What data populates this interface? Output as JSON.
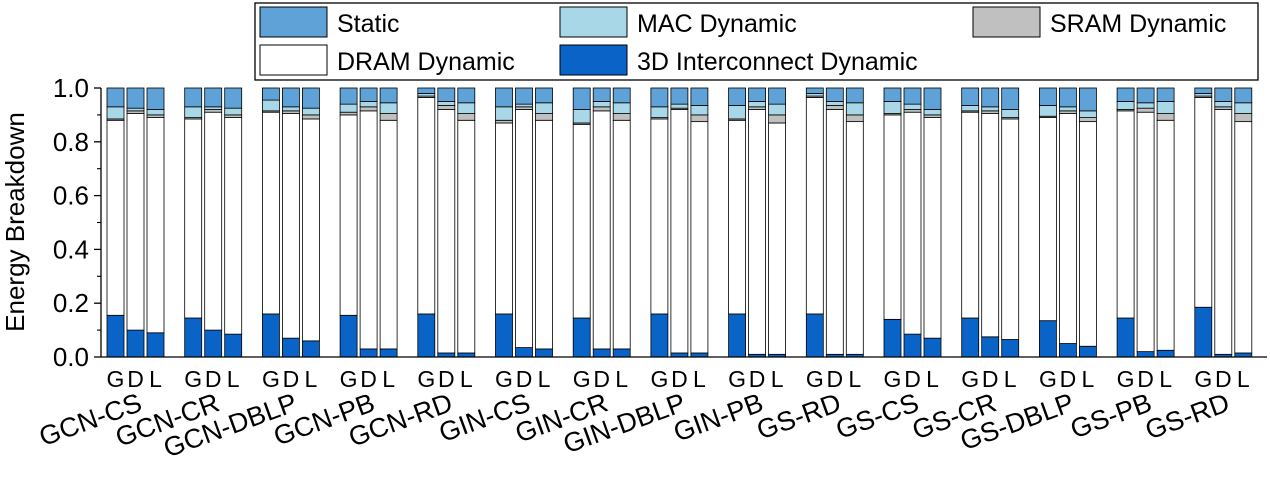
{
  "chart_data": {
    "type": "bar",
    "stacked": true,
    "ylabel": "Energy Breakdown",
    "ylim": [
      0,
      1.0
    ],
    "yticks": [
      "0.0",
      "0.2",
      "0.4",
      "0.6",
      "0.8",
      "1.0"
    ],
    "sub_labels": [
      "G",
      "D",
      "L"
    ],
    "groups": [
      "GCN-CS",
      "GCN-CR",
      "GCN-DBLP",
      "GCN-PB",
      "GCN-RD",
      "GIN-CS",
      "GIN-CR",
      "GIN-DBLP",
      "GIN-PB",
      "GS-RD",
      "GS-CS",
      "GS-CR",
      "GS-DBLP",
      "GS-PB",
      "GS-RD"
    ],
    "legend": {
      "position": "top",
      "entries": [
        {
          "key": "static",
          "label": "Static",
          "color": "#5fa2d8"
        },
        {
          "key": "mac",
          "label": "MAC Dynamic",
          "color": "#a8d8e8"
        },
        {
          "key": "sram",
          "label": "SRAM Dynamic",
          "color": "#c0c0c0"
        },
        {
          "key": "dram",
          "label": "DRAM Dynamic",
          "color": "#ffffff"
        },
        {
          "key": "interconnect",
          "label": "3D Interconnect Dynamic",
          "color": "#0a64c8"
        }
      ]
    },
    "stack_order": [
      "interconnect",
      "dram",
      "sram",
      "mac",
      "static"
    ],
    "bars": [
      [
        [
          0.155,
          0.725,
          0.005,
          0.045,
          0.07
        ],
        [
          0.1,
          0.805,
          0.01,
          0.01,
          0.075
        ],
        [
          0.09,
          0.8,
          0.01,
          0.02,
          0.08
        ]
      ],
      [
        [
          0.145,
          0.74,
          0.005,
          0.04,
          0.07
        ],
        [
          0.1,
          0.81,
          0.01,
          0.01,
          0.07
        ],
        [
          0.085,
          0.805,
          0.01,
          0.025,
          0.075
        ]
      ],
      [
        [
          0.16,
          0.75,
          0.005,
          0.04,
          0.045
        ],
        [
          0.07,
          0.835,
          0.01,
          0.015,
          0.07
        ],
        [
          0.06,
          0.825,
          0.015,
          0.025,
          0.075
        ]
      ],
      [
        [
          0.155,
          0.745,
          0.01,
          0.03,
          0.06
        ],
        [
          0.03,
          0.885,
          0.015,
          0.02,
          0.05
        ],
        [
          0.03,
          0.85,
          0.025,
          0.04,
          0.055
        ]
      ],
      [
        [
          0.16,
          0.805,
          0.005,
          0.01,
          0.02
        ],
        [
          0.015,
          0.905,
          0.015,
          0.015,
          0.05
        ],
        [
          0.015,
          0.865,
          0.025,
          0.04,
          0.055
        ]
      ],
      [
        [
          0.16,
          0.71,
          0.01,
          0.05,
          0.07
        ],
        [
          0.035,
          0.885,
          0.01,
          0.01,
          0.06
        ],
        [
          0.03,
          0.85,
          0.025,
          0.04,
          0.055
        ]
      ],
      [
        [
          0.145,
          0.72,
          0.005,
          0.05,
          0.08
        ],
        [
          0.03,
          0.885,
          0.015,
          0.02,
          0.05
        ],
        [
          0.03,
          0.85,
          0.025,
          0.04,
          0.055
        ]
      ],
      [
        [
          0.16,
          0.725,
          0.005,
          0.04,
          0.07
        ],
        [
          0.015,
          0.905,
          0.005,
          0.015,
          0.06
        ],
        [
          0.015,
          0.86,
          0.025,
          0.035,
          0.065
        ]
      ],
      [
        [
          0.16,
          0.72,
          0.005,
          0.05,
          0.065
        ],
        [
          0.01,
          0.91,
          0.01,
          0.02,
          0.05
        ],
        [
          0.01,
          0.86,
          0.03,
          0.04,
          0.06
        ]
      ],
      [
        [
          0.16,
          0.805,
          0.005,
          0.01,
          0.02
        ],
        [
          0.01,
          0.91,
          0.015,
          0.015,
          0.05
        ],
        [
          0.01,
          0.865,
          0.025,
          0.045,
          0.055
        ]
      ],
      [
        [
          0.14,
          0.76,
          0.005,
          0.045,
          0.05
        ],
        [
          0.085,
          0.825,
          0.01,
          0.02,
          0.06
        ],
        [
          0.07,
          0.82,
          0.01,
          0.02,
          0.08
        ]
      ],
      [
        [
          0.145,
          0.765,
          0.005,
          0.02,
          0.065
        ],
        [
          0.075,
          0.83,
          0.01,
          0.015,
          0.07
        ],
        [
          0.065,
          0.82,
          0.005,
          0.03,
          0.08
        ]
      ],
      [
        [
          0.135,
          0.755,
          0.005,
          0.04,
          0.065
        ],
        [
          0.05,
          0.855,
          0.01,
          0.015,
          0.07
        ],
        [
          0.04,
          0.835,
          0.015,
          0.025,
          0.085
        ]
      ],
      [
        [
          0.145,
          0.77,
          0.005,
          0.03,
          0.05
        ],
        [
          0.02,
          0.89,
          0.015,
          0.02,
          0.055
        ],
        [
          0.025,
          0.855,
          0.025,
          0.045,
          0.05
        ]
      ],
      [
        [
          0.185,
          0.78,
          0.005,
          0.01,
          0.02
        ],
        [
          0.01,
          0.91,
          0.01,
          0.02,
          0.05
        ],
        [
          0.015,
          0.86,
          0.03,
          0.04,
          0.055
        ]
      ]
    ]
  }
}
